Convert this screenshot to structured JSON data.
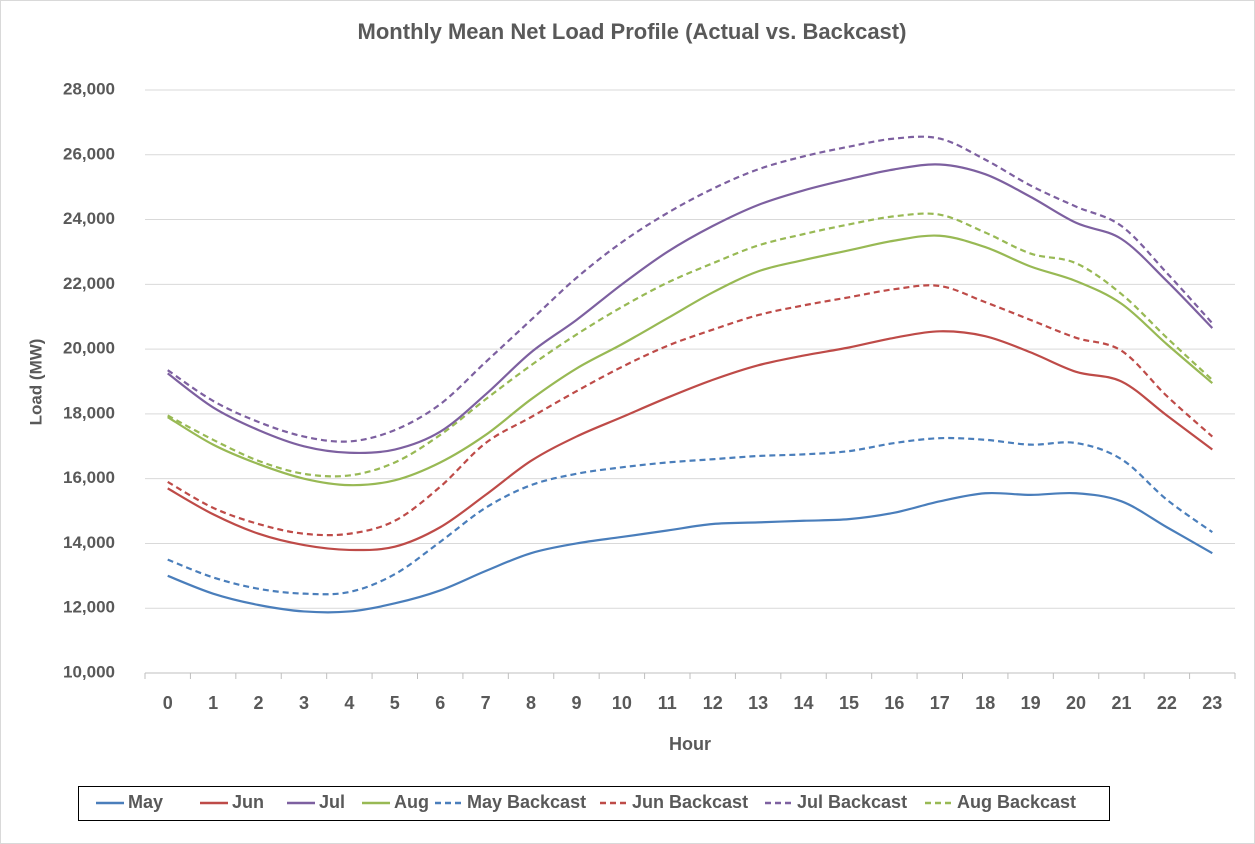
{
  "chart_data": {
    "type": "line",
    "title": "Monthly Mean Net Load Profile (Actual vs. Backcast)",
    "x_label": "Hour",
    "y_label": "Load (MW)",
    "categories": [
      "0",
      "1",
      "2",
      "3",
      "4",
      "5",
      "6",
      "7",
      "8",
      "9",
      "10",
      "11",
      "12",
      "13",
      "14",
      "15",
      "16",
      "17",
      "18",
      "19",
      "20",
      "21",
      "22",
      "23"
    ],
    "ylim": [
      10000,
      28000
    ],
    "yticks": [
      {
        "value": 10000,
        "label": "10,000"
      },
      {
        "value": 12000,
        "label": "12,000"
      },
      {
        "value": 14000,
        "label": "14,000"
      },
      {
        "value": 16000,
        "label": "16,000"
      },
      {
        "value": 18000,
        "label": "18,000"
      },
      {
        "value": 20000,
        "label": "20,000"
      },
      {
        "value": 22000,
        "label": "22,000"
      },
      {
        "value": 24000,
        "label": "24,000"
      },
      {
        "value": 26000,
        "label": "26,000"
      },
      {
        "value": 28000,
        "label": "28,000"
      }
    ],
    "grid": true,
    "legend": "bottom",
    "series": [
      {
        "name": "May",
        "color": "#4a7ebb",
        "line_style": "solid",
        "values": [
          13000,
          12450,
          12100,
          11900,
          11900,
          12150,
          12550,
          13150,
          13700,
          14000,
          14200,
          14400,
          14600,
          14650,
          14700,
          14750,
          14950,
          15300,
          15550,
          15500,
          15550,
          15300,
          14500,
          13700
        ]
      },
      {
        "name": "Jun",
        "color": "#be4b48",
        "line_style": "solid",
        "values": [
          15700,
          14900,
          14300,
          13950,
          13800,
          13900,
          14500,
          15500,
          16550,
          17300,
          17900,
          18500,
          19050,
          19500,
          19800,
          20050,
          20350,
          20550,
          20400,
          19900,
          19300,
          19000,
          17950,
          16900
        ]
      },
      {
        "name": "Jul",
        "color": "#7d60a0",
        "line_style": "solid",
        "values": [
          19250,
          18200,
          17500,
          17000,
          16800,
          16900,
          17450,
          18600,
          19900,
          20900,
          22000,
          23000,
          23800,
          24450,
          24900,
          25250,
          25550,
          25700,
          25400,
          24700,
          23900,
          23400,
          22100,
          20650
        ]
      },
      {
        "name": "Aug",
        "color": "#98b954",
        "line_style": "solid",
        "values": [
          17900,
          17050,
          16450,
          16000,
          15800,
          15950,
          16500,
          17350,
          18450,
          19400,
          20150,
          20950,
          21750,
          22400,
          22750,
          23050,
          23350,
          23500,
          23150,
          22550,
          22100,
          21400,
          20150,
          18950
        ]
      },
      {
        "name": "May Backcast",
        "color": "#4a7ebb",
        "line_style": "dashed",
        "values": [
          13500,
          12950,
          12600,
          12450,
          12500,
          13050,
          14050,
          15100,
          15800,
          16150,
          16350,
          16500,
          16600,
          16700,
          16750,
          16850,
          17100,
          17250,
          17200,
          17050,
          17100,
          16600,
          15350,
          14350
        ]
      },
      {
        "name": "Jun Backcast",
        "color": "#be4b48",
        "line_style": "dashed",
        "values": [
          15900,
          15100,
          14600,
          14300,
          14300,
          14700,
          15750,
          17100,
          17900,
          18700,
          19450,
          20100,
          20600,
          21050,
          21350,
          21600,
          21850,
          21950,
          21450,
          20900,
          20350,
          19950,
          18550,
          17300
        ]
      },
      {
        "name": "Jul Backcast",
        "color": "#7d60a0",
        "line_style": "dashed",
        "values": [
          19350,
          18400,
          17750,
          17300,
          17150,
          17500,
          18300,
          19600,
          20900,
          22200,
          23300,
          24200,
          24950,
          25550,
          25950,
          26250,
          26500,
          26500,
          25850,
          25050,
          24400,
          23800,
          22350,
          20800
        ]
      },
      {
        "name": "Aug Backcast",
        "color": "#98b954",
        "line_style": "dashed",
        "values": [
          17950,
          17200,
          16550,
          16150,
          16100,
          16500,
          17350,
          18450,
          19500,
          20450,
          21300,
          22050,
          22650,
          23200,
          23550,
          23850,
          24100,
          24150,
          23600,
          22950,
          22650,
          21700,
          20350,
          19050
        ]
      }
    ]
  }
}
